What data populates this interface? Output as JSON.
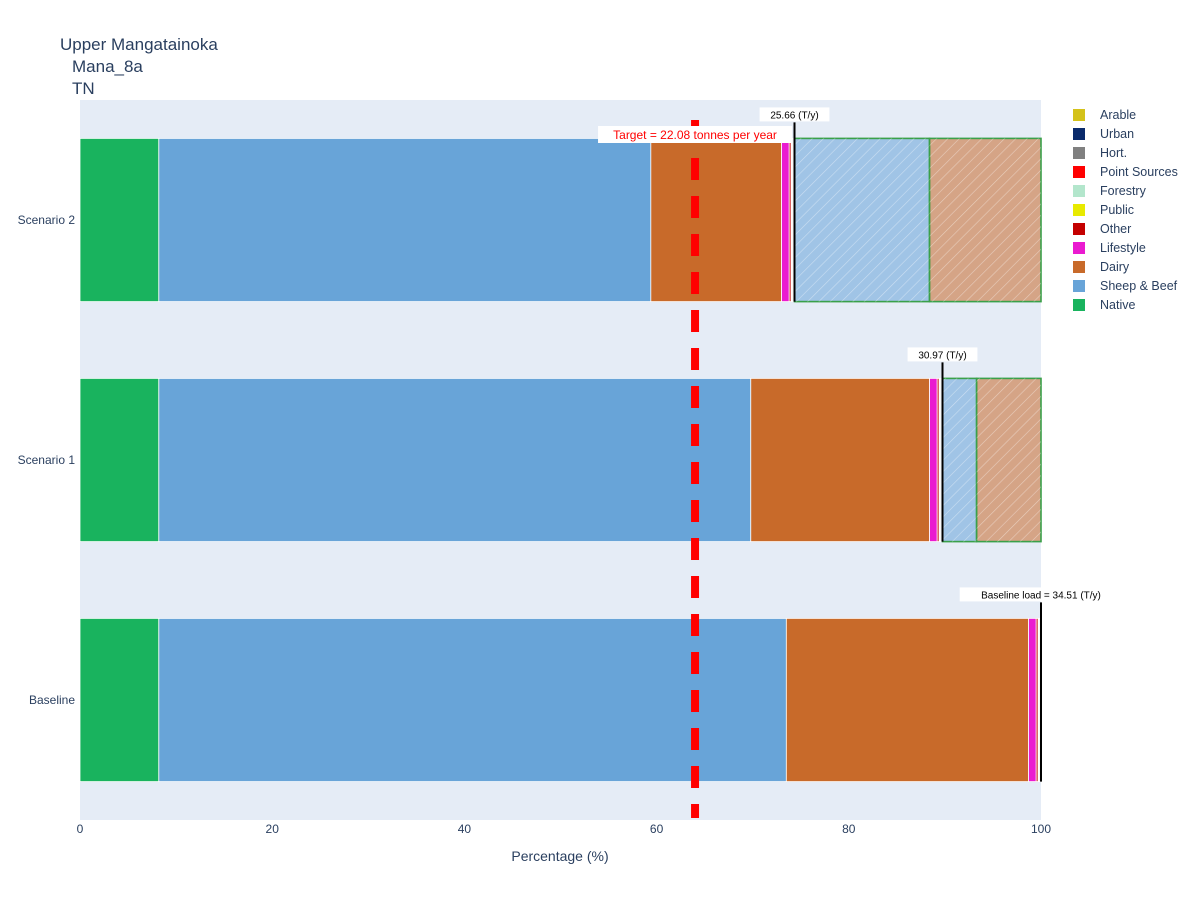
{
  "chart_data": {
    "type": "bar",
    "orientation": "horizontal",
    "barmode": "stack",
    "title_lines": [
      "Upper Mangatainoka",
      "Mana_8a",
      "TN"
    ],
    "xlabel": "Percentage (%)",
    "ylabel": "",
    "xlim": [
      0,
      100
    ],
    "x_ticks": [
      0,
      20,
      40,
      60,
      80,
      100
    ],
    "grid": false,
    "plot_background": "#e5ecf6",
    "categories": [
      "Baseline",
      "Scenario 1",
      "Scenario 2"
    ],
    "series": [
      {
        "name": "Native",
        "color": "#19b35e",
        "values": [
          8.2,
          8.2,
          8.2
        ]
      },
      {
        "name": "Sheep & Beef",
        "color": "#68a4d8",
        "values": [
          65.3,
          61.6,
          51.2
        ]
      },
      {
        "name": "Dairy",
        "color": "#c86a2a",
        "values": [
          25.2,
          18.6,
          13.6
        ]
      },
      {
        "name": "Lifestyle",
        "color": "#ea1ad0",
        "values": [
          0.8,
          0.8,
          0.8
        ]
      },
      {
        "name": "Other",
        "color": "#c40000",
        "values": [
          0.2,
          0.2,
          0.2
        ]
      },
      {
        "name": "Public",
        "color": "#e8ea00",
        "values": [
          0.05,
          0.05,
          0.05
        ]
      },
      {
        "name": "Forestry",
        "color": "#b3e6cc",
        "values": [
          0.05,
          0.05,
          0.05
        ]
      },
      {
        "name": "Point Sources",
        "color": "#ff0000",
        "values": [
          0,
          0,
          0
        ]
      },
      {
        "name": "Hort.",
        "color": "#808080",
        "values": [
          0.1,
          0.1,
          0.1
        ]
      },
      {
        "name": "Urban",
        "color": "#0a2a6b",
        "values": [
          0.05,
          0.05,
          0.05
        ]
      },
      {
        "name": "Arable",
        "color": "#d4c21a",
        "values": [
          0,
          0,
          0
        ]
      }
    ],
    "reductions": [
      {
        "category": "Scenario 1",
        "segments": [
          {
            "from": 89.75,
            "to": 93.3,
            "color": "#68a4d8"
          },
          {
            "from": 93.3,
            "to": 100,
            "color": "#c86a2a"
          }
        ]
      },
      {
        "category": "Scenario 2",
        "segments": [
          {
            "from": 74.35,
            "to": 88.4,
            "color": "#68a4d8"
          },
          {
            "from": 88.4,
            "to": 100,
            "color": "#c86a2a"
          }
        ]
      }
    ],
    "load_markers": [
      {
        "category": "Baseline",
        "x": 100,
        "label": "Baseline load = 34.51 (T/y)"
      },
      {
        "category": "Scenario 1",
        "x": 89.75,
        "label": "30.97 (T/y)"
      },
      {
        "category": "Scenario 2",
        "x": 74.35,
        "label": "25.66 (T/y)"
      }
    ],
    "target": {
      "x": 64.0,
      "label": "Target = 22.08 tonnes per year",
      "color": "#ff0000"
    },
    "legend_position": "right",
    "legend_order": [
      "Arable",
      "Urban",
      "Hort.",
      "Point Sources",
      "Forestry",
      "Public",
      "Other",
      "Lifestyle",
      "Dairy",
      "Sheep & Beef",
      "Native"
    ]
  }
}
